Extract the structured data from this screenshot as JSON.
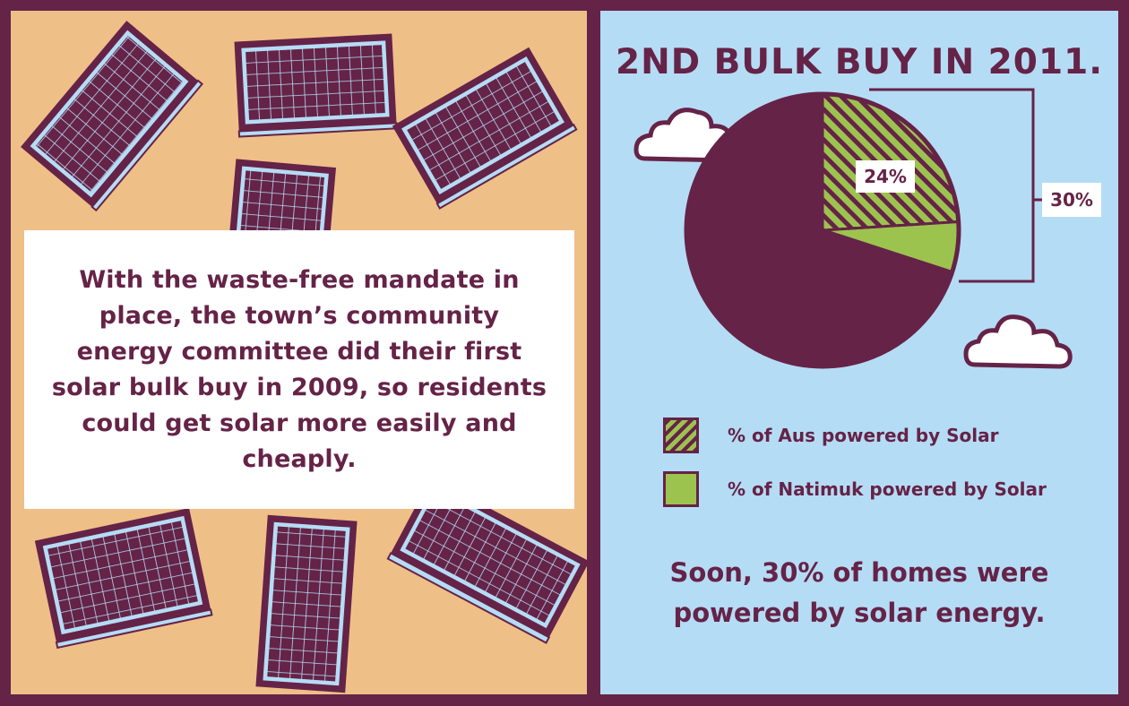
{
  "left": {
    "body_text": "With the waste-free mandate in place, the town’s community energy committee did their first solar bulk buy in 2009, so residents could get solar more easily and cheaply."
  },
  "right": {
    "title": "2ND BULK BUY IN 2011.",
    "legend": [
      {
        "label": "% of Aus powered by Solar",
        "style": "hatched"
      },
      {
        "label": "% of Natimuk powered by Solar",
        "style": "solid"
      }
    ],
    "summary": "Soon, 30% of homes were powered by solar energy."
  },
  "chart_data": {
    "type": "pie",
    "title": "2ND BULK BUY IN 2011.",
    "series": [
      {
        "name": "% of Aus powered by Solar",
        "value": 24,
        "label": "24%"
      },
      {
        "name": "% of Natimuk powered by Solar",
        "value": 30,
        "label": "30%"
      }
    ],
    "remainder": 70,
    "annotations": [
      "24%",
      "30%"
    ]
  },
  "colors": {
    "maroon": "#652347",
    "peach": "#efbf88",
    "sky": "#b5dcf5",
    "green": "#9dc34f",
    "panel_frame": "#b5dcf5",
    "white": "#ffffff"
  },
  "icons": [
    "solar-panel-icon",
    "cloud-icon"
  ]
}
